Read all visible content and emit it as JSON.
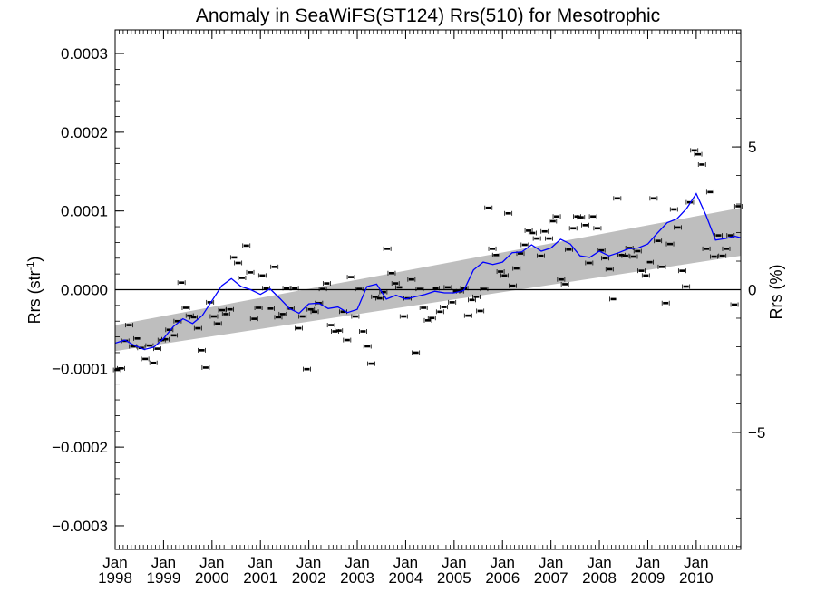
{
  "chart_data": {
    "type": "scatter",
    "title": "Anomaly in SeaWiFS(ST124) Rrs(510) for Mesotrophic",
    "ylabel_left": {
      "base": "Rrs (str",
      "sup": "-1",
      "end": ")"
    },
    "ylabel_right": "Rrs (%)",
    "xlim": [
      1998.0,
      2010.92
    ],
    "ylim": [
      -0.00033,
      0.00033
    ],
    "y2lim": [
      -9.1,
      9.1
    ],
    "y_ticks": [
      {
        "value": -0.0003,
        "label": "−0.0003"
      },
      {
        "value": -0.0002,
        "label": "−0.0002"
      },
      {
        "value": -0.0001,
        "label": "−0.0001"
      },
      {
        "value": 0.0,
        "label": "0.0000"
      },
      {
        "value": 0.0001,
        "label": "0.0001"
      },
      {
        "value": 0.0002,
        "label": "0.0002"
      },
      {
        "value": 0.0003,
        "label": "0.0003"
      }
    ],
    "y2_ticks": [
      {
        "value": -5,
        "label": "−5"
      },
      {
        "value": 0,
        "label": "0"
      },
      {
        "value": 5,
        "label": "5"
      }
    ],
    "x_ticks": [
      {
        "value": 1998,
        "month": "Jan",
        "year": "1998"
      },
      {
        "value": 1999,
        "month": "Jan",
        "year": "1999"
      },
      {
        "value": 2000,
        "month": "Jan",
        "year": "2000"
      },
      {
        "value": 2001,
        "month": "Jan",
        "year": "2001"
      },
      {
        "value": 2002,
        "month": "Jan",
        "year": "2002"
      },
      {
        "value": 2003,
        "month": "Jan",
        "year": "2003"
      },
      {
        "value": 2004,
        "month": "Jan",
        "year": "2004"
      },
      {
        "value": 2005,
        "month": "Jan",
        "year": "2005"
      },
      {
        "value": 2006,
        "month": "Jan",
        "year": "2006"
      },
      {
        "value": 2007,
        "month": "Jan",
        "year": "2007"
      },
      {
        "value": 2008,
        "month": "Jan",
        "year": "2008"
      },
      {
        "value": 2009,
        "month": "Jan",
        "year": "2009"
      },
      {
        "value": 2010,
        "month": "Jan",
        "year": "2010"
      }
    ],
    "trend_band": {
      "color": "#bebebe",
      "start": {
        "x": 1998.0,
        "low": -7.8e-05,
        "high": -4.5e-05
      },
      "end": {
        "x": 2010.92,
        "low": 4.3e-05,
        "high": 0.000104
      }
    },
    "zero_line": 0.0,
    "monthly_anomaly": {
      "marker": "short black bar with error whiskers",
      "color": "#000000",
      "x": [
        1998.04,
        1998.12,
        1998.21,
        1998.29,
        1998.37,
        1998.46,
        1998.54,
        1998.62,
        1998.71,
        1998.79,
        1998.87,
        1998.96,
        1999.04,
        1999.12,
        1999.21,
        1999.29,
        1999.37,
        1999.46,
        1999.54,
        1999.62,
        1999.71,
        1999.79,
        1999.87,
        1999.96,
        2000.04,
        2000.12,
        2000.21,
        2000.29,
        2000.37,
        2000.46,
        2000.54,
        2000.62,
        2000.71,
        2000.79,
        2000.87,
        2000.96,
        2001.04,
        2001.12,
        2001.21,
        2001.29,
        2001.37,
        2001.46,
        2001.54,
        2001.62,
        2001.71,
        2001.79,
        2001.87,
        2001.96,
        2002.04,
        2002.12,
        2002.21,
        2002.29,
        2002.37,
        2002.46,
        2002.54,
        2002.62,
        2002.71,
        2002.79,
        2002.87,
        2002.96,
        2003.04,
        2003.12,
        2003.21,
        2003.29,
        2003.37,
        2003.46,
        2003.54,
        2003.62,
        2003.71,
        2003.79,
        2003.87,
        2003.96,
        2004.04,
        2004.12,
        2004.21,
        2004.29,
        2004.37,
        2004.46,
        2004.54,
        2004.62,
        2004.71,
        2004.79,
        2004.87,
        2004.96,
        2005.04,
        2005.12,
        2005.21,
        2005.29,
        2005.37,
        2005.46,
        2005.54,
        2005.62,
        2005.71,
        2005.79,
        2005.87,
        2005.96,
        2006.04,
        2006.12,
        2006.21,
        2006.29,
        2006.37,
        2006.46,
        2006.54,
        2006.62,
        2006.71,
        2006.79,
        2006.87,
        2006.96,
        2007.04,
        2007.12,
        2007.21,
        2007.29,
        2007.37,
        2007.46,
        2007.54,
        2007.62,
        2007.71,
        2007.79,
        2007.87,
        2007.96,
        2008.04,
        2008.12,
        2008.21,
        2008.29,
        2008.37,
        2008.46,
        2008.54,
        2008.62,
        2008.71,
        2008.79,
        2008.87,
        2008.96,
        2009.04,
        2009.12,
        2009.21,
        2009.29,
        2009.37,
        2009.46,
        2009.54,
        2009.62,
        2009.71,
        2009.79,
        2009.87,
        2009.96,
        2010.04,
        2010.12,
        2010.21,
        2010.29,
        2010.37,
        2010.46,
        2010.54,
        2010.62,
        2010.71,
        2010.79,
        2010.87
      ],
      "y": [
        -0.000102,
        -0.0001,
        -6.5e-05,
        -4.5e-05,
        -7.2e-05,
        -6.2e-05,
        -7.4e-05,
        -8.8e-05,
        -7.1e-05,
        -9.3e-05,
        -7.5e-05,
        -6.4e-05,
        -6.3e-05,
        -5.1e-05,
        -5.8e-05,
        -4e-05,
        9e-06,
        -2.3e-05,
        -3.3e-05,
        -3.5e-05,
        -4.9e-05,
        -7.7e-05,
        -9.9e-05,
        -1.6e-05,
        -3.4e-05,
        -4.3e-05,
        -2.6e-05,
        -3.1e-05,
        -2.5e-05,
        4.1e-05,
        3.4e-05,
        1.5e-05,
        5.6e-05,
        2.2e-05,
        -3.7e-05,
        -2.3e-05,
        1.8e-05,
        2e-06,
        -2.4e-05,
        2.9e-05,
        -3.5e-05,
        -3.1e-05,
        2e-06,
        -2.4e-05,
        2e-06,
        -4.9e-05,
        -3.4e-05,
        -0.000101,
        -2.5e-05,
        -2.8e-05,
        -1.7e-05,
        1e-06,
        8e-06,
        -4.5e-05,
        -5.3e-05,
        -5.2e-05,
        -2.8e-05,
        -6.4e-05,
        1.6e-05,
        -3.4e-05,
        1e-06,
        -5.3e-05,
        -7.2e-05,
        -9.4e-05,
        -9e-06,
        -1.1e-05,
        -3e-06,
        5.2e-05,
        2.1e-05,
        8e-06,
        3e-06,
        -3.4e-05,
        -1.1e-05,
        1.3e-05,
        -8e-05,
        1e-06,
        -2.3e-05,
        -3.9e-05,
        -3.6e-05,
        2e-06,
        -2.8e-05,
        -2.2e-05,
        3e-06,
        -1.6e-05,
        -2e-06,
        -2e-06,
        2e-06,
        -3.3e-05,
        -1.3e-05,
        -9e-06,
        -2.7e-05,
        1e-06,
        0.000104,
        5.2e-05,
        4.4e-05,
        2.3e-05,
        1.8e-05,
        9.7e-05,
        5e-06,
        2.7e-05,
        4.6e-05,
        5.7e-05,
        7.5e-05,
        7.2e-05,
        6.5e-05,
        4.3e-05,
        7.4e-05,
        6.5e-05,
        8.7e-05,
        9.3e-05,
        1.3e-05,
        7e-06,
        5.1e-05,
        7.8e-05,
        9.3e-05,
        9.2e-05,
        8.2e-05,
        3.4e-05,
        9.3e-05,
        7.8e-05,
        5e-05,
        4e-05,
        2.6e-05,
        -1.2e-05,
        0.000116,
        4.4e-05,
        4.3e-05,
        5.3e-05,
        4.2e-05,
        4.9e-05,
        2.4e-05,
        1.8e-05,
        3.5e-05,
        0.000116,
        6.2e-05,
        2.9e-05,
        -1.7e-05,
        5.8e-05,
        0.000102,
        7.9e-05,
        2.4e-05,
        4e-06,
        0.000111,
        0.000177,
        0.000172,
        0.000159,
        5.2e-05,
        0.000124,
        4.2e-05,
        6.9e-05,
        4.3e-05,
        5.2e-05,
        6.9e-05,
        -1.9e-05,
        0.000106
      ]
    },
    "running_mean": {
      "color": "#0000ff",
      "x": [
        1998.0,
        1998.2,
        1998.4,
        1998.6,
        1998.8,
        1999.0,
        1999.2,
        1999.4,
        1999.6,
        1999.8,
        2000.0,
        2000.2,
        2000.4,
        2000.6,
        2000.8,
        2001.0,
        2001.2,
        2001.4,
        2001.6,
        2001.8,
        2002.0,
        2002.2,
        2002.4,
        2002.6,
        2002.8,
        2003.0,
        2003.2,
        2003.4,
        2003.6,
        2003.8,
        2004.0,
        2004.2,
        2004.4,
        2004.6,
        2004.8,
        2005.0,
        2005.2,
        2005.4,
        2005.6,
        2005.8,
        2006.0,
        2006.2,
        2006.4,
        2006.6,
        2006.8,
        2007.0,
        2007.2,
        2007.4,
        2007.6,
        2007.8,
        2008.0,
        2008.2,
        2008.4,
        2008.6,
        2008.8,
        2009.0,
        2009.2,
        2009.4,
        2009.6,
        2009.8,
        2010.0,
        2010.2,
        2010.4,
        2010.6,
        2010.8,
        2010.92
      ],
      "y": [
        -6.8e-05,
        -6.4e-05,
        -7.1e-05,
        -7.6e-05,
        -7.3e-05,
        -6.2e-05,
        -4.7e-05,
        -3.7e-05,
        -4.3e-05,
        -3.3e-05,
        -1.4e-05,
        5e-06,
        1.4e-05,
        4e-06,
        0.0,
        -6e-06,
        1e-06,
        -1.1e-05,
        -2.4e-05,
        -3e-05,
        -1.8e-05,
        -1.7e-05,
        -2.4e-05,
        -2.2e-05,
        -2.9e-05,
        -2.5e-05,
        4e-06,
        7e-06,
        -1.2e-05,
        -7e-06,
        -1.2e-05,
        -9e-06,
        -6e-06,
        -2e-06,
        -4e-06,
        -4e-06,
        -1e-06,
        2.5e-05,
        3.5e-05,
        3.2e-05,
        3.5e-05,
        4.7e-05,
        4.8e-05,
        5.7e-05,
        4.9e-05,
        5.3e-05,
        6.4e-05,
        5.8e-05,
        4.3e-05,
        4.1e-05,
        4.9e-05,
        4.3e-05,
        4.7e-05,
        5.2e-05,
        5.3e-05,
        5.8e-05,
        7.2e-05,
        8.5e-05,
        9e-05,
        0.000103,
        0.000122,
        9.5e-05,
        6.3e-05,
        6.5e-05,
        6.8e-05,
        6.6e-05
      ]
    }
  }
}
